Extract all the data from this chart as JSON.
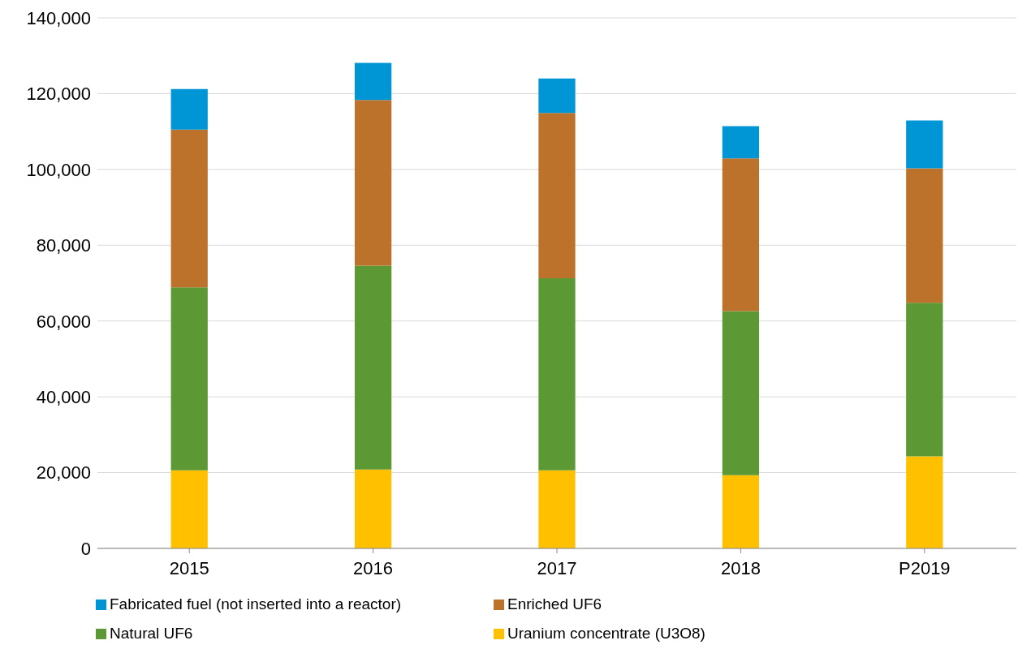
{
  "chart_data": {
    "type": "bar",
    "stacked": true,
    "categories": [
      "2015",
      "2016",
      "2017",
      "2018",
      "P2019"
    ],
    "series": [
      {
        "name": "Uranium concentrate (U3O8)",
        "color": "#ffc000",
        "values": [
          20600,
          20800,
          20600,
          19300,
          24300
        ]
      },
      {
        "name": "Natural UF6",
        "color": "#5c9834",
        "values": [
          48300,
          53800,
          50700,
          43300,
          40500
        ]
      },
      {
        "name": "Enriched UF6",
        "color": "#bd722b",
        "values": [
          41600,
          43700,
          43600,
          40300,
          35500
        ]
      },
      {
        "name": "Fabricated fuel (not inserted into a reactor)",
        "color": "#0096d6",
        "values": [
          10700,
          9800,
          9100,
          8500,
          12600
        ]
      }
    ],
    "ylim": [
      0,
      140000
    ],
    "yticks": [
      {
        "value": 0,
        "label": "0"
      },
      {
        "value": 20000,
        "label": "20,000"
      },
      {
        "value": 40000,
        "label": "40,000"
      },
      {
        "value": 60000,
        "label": "60,000"
      },
      {
        "value": 80000,
        "label": "80,000"
      },
      {
        "value": 100000,
        "label": "100,000"
      },
      {
        "value": 120000,
        "label": "120,000"
      },
      {
        "value": 140000,
        "label": "140,000"
      }
    ],
    "grid": "y",
    "legend": "bottom"
  }
}
